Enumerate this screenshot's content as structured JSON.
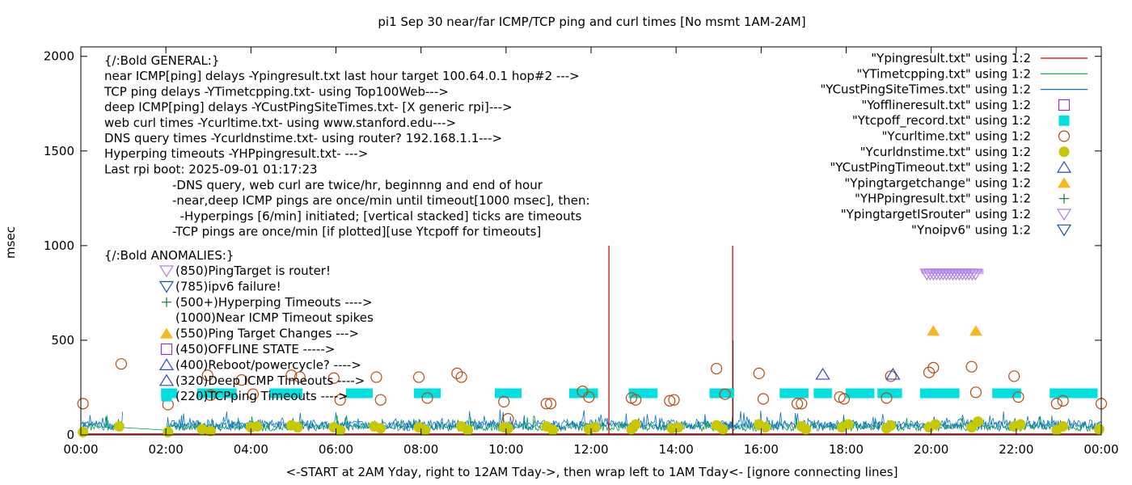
{
  "chart_data": {
    "type": "scatter",
    "title": "pi1 Sep 30  near/far ICMP/TCP ping and curl times [No msmt 1AM-2AM]",
    "xlabel": "<-START at 2AM Yday, right to 12AM Tday->, then wrap left to 1AM Tday<- [ignore connecting lines]",
    "ylabel": "msec",
    "xlim": [
      0,
      24
    ],
    "ylim": [
      0,
      2050
    ],
    "x_ticks": [
      "00:00",
      "02:00",
      "04:00",
      "06:00",
      "08:00",
      "10:00",
      "12:00",
      "14:00",
      "16:00",
      "18:00",
      "20:00",
      "22:00",
      "00:00"
    ],
    "y_ticks": [
      0,
      500,
      1000,
      1500,
      2000
    ],
    "grid": false,
    "legend_position": "top-right",
    "notes_general": [
      "{/:Bold GENERAL:}",
      "near ICMP[ping] delays -Ypingresult.txt last hour target 100.64.0.1 hop#2 --->",
      "TCP ping delays -YTimetcpping.txt- using Top100Web--->",
      "deep ICMP[ping] delays -YCustPingSiteTimes.txt- [X generic rpi]--->",
      "web curl times -Ycurltime.txt- using www.stanford.edu--->",
      "DNS query times -Ycurldnstime.txt- using router? 192.168.1.1--->",
      "Hyperping timeouts -YHPpingresult.txt- --->",
      "Last rpi boot: 2025-09-01 01:17:23"
    ],
    "notes_indented": [
      "-DNS query, web curl are twice/hr, beginnng and end of hour",
      "-near,deep ICMP pings are once/min until timeout[1000 msec], then:",
      "  -Hyperpings [6/min] initiated; [vertical stacked] ticks are timeouts",
      "-TCP pings are once/min [if plotted][use Ytcpoff for timeouts]"
    ],
    "anomalies_title": "{/:Bold ANOMALIES:}",
    "anomalies": [
      {
        "marker": "triangle-down",
        "color": "#b07ee8",
        "text": "(850)PingTarget is router!"
      },
      {
        "marker": "triangle-down",
        "color": "#1f4e9e",
        "text": "(785)ipv6 failure!"
      },
      {
        "marker": "plus",
        "color": "#0a7a3a",
        "text": "(500+)Hyperping Timeouts ---->"
      },
      {
        "marker": "none",
        "color": "#000000",
        "text": "(1000)Near ICMP Timeout spikes"
      },
      {
        "marker": "triangle-up-filled",
        "color": "#f5b820",
        "text": "(550)Ping Target Changes --->"
      },
      {
        "marker": "square-open",
        "color": "#9b30d9",
        "text": "(450)OFFLINE STATE ----->"
      },
      {
        "marker": "triangle-up",
        "color": "#2a48c8",
        "text": "(400)Reboot/powercycle? ---->"
      },
      {
        "marker": "triangle-up",
        "color": "#2a48c8",
        "text": "(320)Deep ICMP Timeouts ---->"
      },
      {
        "marker": "square-filled",
        "color": "#00e0e0",
        "text": "(220)TCPping Timeouts ---->"
      }
    ],
    "legend": [
      {
        "label": "\"Ypingresult.txt\" using 1:2",
        "marker": "line",
        "color": "#c00000"
      },
      {
        "label": "\"YTimetcpping.txt\" using 1:2",
        "marker": "line",
        "color": "#009e3a"
      },
      {
        "label": "\"YCustPingSiteTimes.txt\" using 1:2",
        "marker": "line",
        "color": "#0a72c8"
      },
      {
        "label": "\"Yofflineresult.txt\" using 1:2",
        "marker": "square-open",
        "color": "#9b30d9"
      },
      {
        "label": "\"Ytcpoff_record.txt\" using 1:2",
        "marker": "square-filled",
        "color": "#00e0e0"
      },
      {
        "label": "\"Ycurltime.txt\" using 1:2",
        "marker": "circle-open",
        "color": "#b84a10"
      },
      {
        "label": "\"Ycurldnstime.txt\" using 1:2",
        "marker": "circle-filled",
        "color": "#c8c800"
      },
      {
        "label": "\"YCustPingTimeout.txt\" using 1:2",
        "marker": "triangle-up",
        "color": "#2a48c8"
      },
      {
        "label": "\"Ypingtargetchange\" using 1:2",
        "marker": "triangle-up-filled",
        "color": "#f5b820"
      },
      {
        "label": "\"YHPpingresult.txt\" using 1:2",
        "marker": "plus",
        "color": "#0a7a3a"
      },
      {
        "label": "\"YpingtargetISrouter\" using 1:2",
        "marker": "triangle-down",
        "color": "#b07ee8"
      },
      {
        "label": "\"Ynoipv6\" using 1:2",
        "marker": "triangle-down",
        "color": "#1f4e9e"
      }
    ],
    "series": {
      "near_icmp_spikes": {
        "x": [
          12.42,
          15.33
        ],
        "y": [
          1000,
          1000
        ]
      },
      "curl_times": {
        "x": [
          0.05,
          0.95,
          2.05,
          2.98,
          3.05,
          3.78,
          4.05,
          4.95,
          5.15,
          5.95,
          6.1,
          6.95,
          7.05,
          7.95,
          8.15,
          8.85,
          8.95,
          9.95,
          10.05,
          10.95,
          11.05,
          11.8,
          11.95,
          12.95,
          13.05,
          13.85,
          13.95,
          14.95,
          15.15,
          15.95,
          16.05,
          16.85,
          16.95,
          17.85,
          17.95,
          18.95,
          19.05,
          19.95,
          20.05,
          20.95,
          21.05,
          21.95,
          22.05,
          22.95,
          23.1,
          24.0
        ],
        "y": [
          165,
          375,
          160,
          315,
          210,
          290,
          215,
          315,
          305,
          300,
          185,
          305,
          185,
          305,
          195,
          325,
          305,
          175,
          85,
          165,
          165,
          230,
          200,
          195,
          185,
          180,
          185,
          350,
          215,
          325,
          190,
          165,
          165,
          200,
          190,
          195,
          310,
          330,
          355,
          360,
          225,
          310,
          200,
          165,
          180,
          165
        ]
      },
      "dns_times": {
        "x": [
          0.05,
          0.9,
          2.05,
          2.85,
          3.05,
          4.0,
          4.15,
          4.95,
          5.1,
          5.95,
          6.1,
          6.9,
          7.05,
          7.95,
          8.1,
          8.95,
          9.1,
          9.95,
          10.05,
          10.95,
          11.1,
          11.95,
          12.1,
          12.95,
          13.05,
          13.9,
          14.05,
          14.95,
          15.1,
          15.95,
          16.1,
          16.95,
          17.05,
          17.9,
          18.05,
          18.95,
          19.05,
          19.95,
          20.1,
          20.95,
          21.1,
          21.95,
          22.1,
          22.95,
          23.1,
          23.95
        ],
        "y": [
          15,
          45,
          15,
          30,
          20,
          40,
          45,
          50,
          40,
          40,
          25,
          45,
          35,
          40,
          25,
          45,
          25,
          40,
          35,
          45,
          25,
          30,
          40,
          30,
          55,
          35,
          40,
          50,
          30,
          55,
          40,
          45,
          30,
          40,
          55,
          35,
          50,
          40,
          55,
          40,
          70,
          45,
          55,
          25,
          45,
          30
        ]
      },
      "tcp_timeouts": {
        "segments": [
          [
            2.0,
            2.15
          ],
          [
            2.85,
            3.55
          ],
          [
            4.55,
            5.1
          ],
          [
            6.35,
            6.75
          ],
          [
            7.95,
            8.35
          ],
          [
            9.85,
            10.25
          ],
          [
            11.6,
            12.05
          ],
          [
            13.0,
            13.45
          ],
          [
            14.9,
            15.25
          ],
          [
            16.55,
            17.0
          ],
          [
            17.35,
            17.55
          ],
          [
            18.1,
            18.55
          ],
          [
            18.85,
            19.2
          ],
          [
            19.85,
            20.55
          ],
          [
            21.55,
            22.0
          ],
          [
            22.9,
            23.15
          ],
          [
            23.3,
            23.8
          ]
        ],
        "y": 220
      },
      "deep_icmp_timeouts": {
        "x": [
          17.45,
          19.1
        ],
        "y": [
          320,
          320
        ]
      },
      "ping_target_changes": {
        "x": [
          20.05,
          21.05
        ],
        "y": [
          550,
          550
        ]
      },
      "ping_target_is_router": {
        "x_start": 19.9,
        "x_end": 21.1,
        "y": 850
      },
      "offline_state": {
        "x": [],
        "y": []
      }
    }
  }
}
